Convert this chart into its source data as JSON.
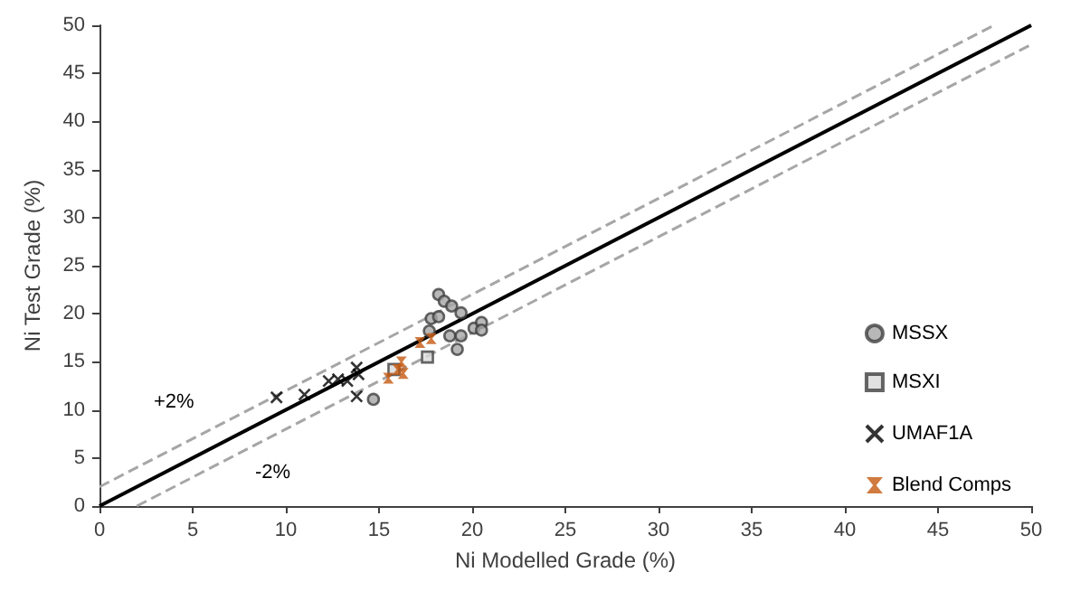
{
  "chart_data": {
    "type": "scatter",
    "xlabel": "Ni Modelled Grade (%)",
    "ylabel": "Ni Test Grade (%)",
    "xlim": [
      0,
      50
    ],
    "ylim": [
      0,
      50
    ],
    "xticks": [
      0,
      5,
      10,
      15,
      20,
      25,
      30,
      35,
      40,
      45,
      50
    ],
    "yticks": [
      0,
      5,
      10,
      15,
      20,
      25,
      30,
      35,
      40,
      45,
      50
    ],
    "grid": false,
    "legend": "right",
    "annotations": [
      "+2%",
      "-2%"
    ],
    "series": [
      {
        "type": "line",
        "color": "#000000",
        "line_style": "solid",
        "marker": "none",
        "x": [
          0,
          50
        ],
        "values": [
          0,
          50
        ]
      },
      {
        "type": "line",
        "color": "#a6a6a6",
        "line_style": "dashed",
        "marker": "none",
        "x": [
          0,
          48
        ],
        "values": [
          2,
          50
        ]
      },
      {
        "type": "line",
        "color": "#a6a6a6",
        "line_style": "dashed",
        "marker": "none",
        "x": [
          2,
          50
        ],
        "values": [
          0,
          48
        ]
      },
      {
        "name": "MSSX",
        "color": "#a6a6a6",
        "marker": "circle",
        "x": [
          18.2,
          18.5,
          18.9,
          19.4,
          17.8,
          18.2,
          17.7,
          18.8,
          19.4,
          19.2,
          20.1,
          20.5,
          20.5,
          14.7
        ],
        "values": [
          22.0,
          21.3,
          20.8,
          20.1,
          19.5,
          19.7,
          18.2,
          17.7,
          17.7,
          16.3,
          18.5,
          19.1,
          18.3,
          11.1
        ]
      },
      {
        "name": "MSXI",
        "color": "#d9d9d9",
        "marker": "square",
        "x": [
          17.6,
          15.8
        ],
        "values": [
          15.5,
          14.2
        ]
      },
      {
        "name": "UMAF1A",
        "color": "#000000",
        "marker": "cross",
        "x": [
          9.5,
          11.0,
          12.3,
          12.8,
          13.3,
          13.8,
          13.9,
          13.8
        ],
        "values": [
          11.3,
          11.6,
          13.0,
          13.2,
          13.0,
          14.4,
          13.7,
          11.4
        ]
      },
      {
        "name": "Blend Comps",
        "color": "#c55a11",
        "marker": "star",
        "x": [
          17.2,
          17.8,
          16.2,
          15.5,
          16.3,
          16.0
        ],
        "values": [
          17.0,
          17.4,
          15.0,
          13.3,
          13.8,
          14.2
        ]
      }
    ]
  }
}
